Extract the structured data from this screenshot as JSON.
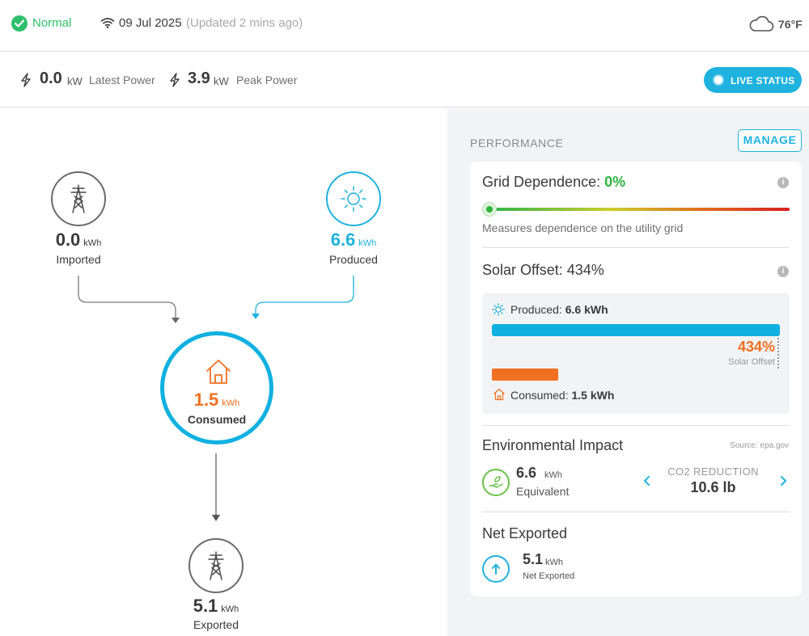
{
  "header": {
    "status": "Normal",
    "date": "09 Jul 2025",
    "updated": "(Updated 2 mins ago)",
    "temperature": "76°F",
    "icons": {
      "status": "check-circle-icon",
      "connection": "wifi-icon",
      "weather": "cloud-icon"
    }
  },
  "power": {
    "latest_value": "0.0",
    "latest_unit": "kW",
    "latest_label": "Latest Power",
    "peak_value": "3.9",
    "peak_unit": "kW",
    "peak_label": "Peak Power",
    "live_status_label": "LIVE STATUS"
  },
  "flow": {
    "imported": {
      "value": "0.0",
      "unit": "kWh",
      "label": "Imported"
    },
    "produced": {
      "value": "6.6",
      "unit": "kWh",
      "label": "Produced"
    },
    "consumed": {
      "value": "1.5",
      "unit": "kWh",
      "label": "Consumed"
    },
    "exported": {
      "value": "5.1",
      "unit": "kWh",
      "label": "Exported"
    }
  },
  "performance": {
    "title": "PERFORMANCE",
    "manage_label": "MANAGE",
    "grid_dependence": {
      "label": "Grid Dependence:",
      "value": "0%",
      "level": 0,
      "description": "Measures dependence on the utility grid"
    },
    "solar_offset": {
      "label": "Solar Offset: 434%",
      "produced_label": "Produced:",
      "produced_value": "6.6 kWh",
      "consumed_label": "Consumed:",
      "consumed_value": "1.5 kWh",
      "offset_value": "434%",
      "offset_caption": "Solar Offset",
      "produced_fraction": 1.0,
      "consumed_fraction": 0.23
    },
    "environmental": {
      "title": "Environmental Impact",
      "source": "Source: epa.gov",
      "value": "6.6",
      "unit": "kWh",
      "label": "Equivalent",
      "co2_title": "CO2 REDUCTION",
      "co2_value": "10.6 lb"
    },
    "net_exported": {
      "title": "Net Exported",
      "value": "5.1",
      "unit": "kWh",
      "label": "Net Exported"
    }
  },
  "colors": {
    "accent": "#1fb2de",
    "status_ok": "#2dbf6c",
    "consumed": "#f07022",
    "produced": "#10b1e0",
    "grid_good": "#2db33f"
  }
}
